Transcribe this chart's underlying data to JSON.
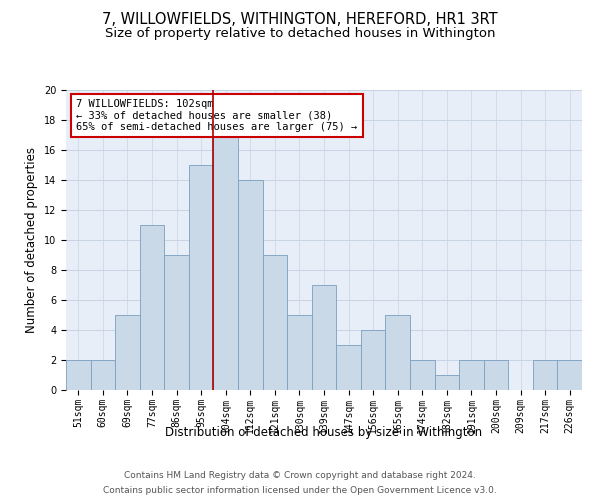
{
  "title": "7, WILLOWFIELDS, WITHINGTON, HEREFORD, HR1 3RT",
  "subtitle": "Size of property relative to detached houses in Withington",
  "xlabel": "Distribution of detached houses by size in Withington",
  "ylabel": "Number of detached properties",
  "bar_labels": [
    "51sqm",
    "60sqm",
    "69sqm",
    "77sqm",
    "86sqm",
    "95sqm",
    "104sqm",
    "112sqm",
    "121sqm",
    "130sqm",
    "139sqm",
    "147sqm",
    "156sqm",
    "165sqm",
    "174sqm",
    "182sqm",
    "191sqm",
    "200sqm",
    "209sqm",
    "217sqm",
    "226sqm"
  ],
  "bar_values": [
    2,
    2,
    5,
    11,
    9,
    15,
    17,
    14,
    9,
    5,
    7,
    3,
    4,
    5,
    2,
    1,
    2,
    2,
    0,
    2,
    2
  ],
  "bar_color": "#c9d9e8",
  "bar_edge_color": "#7aa0c0",
  "reference_line_color": "#aa0000",
  "reference_line_index": 6,
  "annotation_text": "7 WILLOWFIELDS: 102sqm\n← 33% of detached houses are smaller (38)\n65% of semi-detached houses are larger (75) →",
  "annotation_box_color": "#ffffff",
  "annotation_box_edge_color": "#cc0000",
  "ylim": [
    0,
    20
  ],
  "yticks": [
    0,
    2,
    4,
    6,
    8,
    10,
    12,
    14,
    16,
    18,
    20
  ],
  "grid_color": "#c8d4e4",
  "background_color": "#e8eef8",
  "footer_line1": "Contains HM Land Registry data © Crown copyright and database right 2024.",
  "footer_line2": "Contains public sector information licensed under the Open Government Licence v3.0.",
  "title_fontsize": 10.5,
  "subtitle_fontsize": 9.5,
  "axis_label_fontsize": 8.5,
  "tick_fontsize": 7,
  "annotation_fontsize": 7.5,
  "footer_fontsize": 6.5
}
